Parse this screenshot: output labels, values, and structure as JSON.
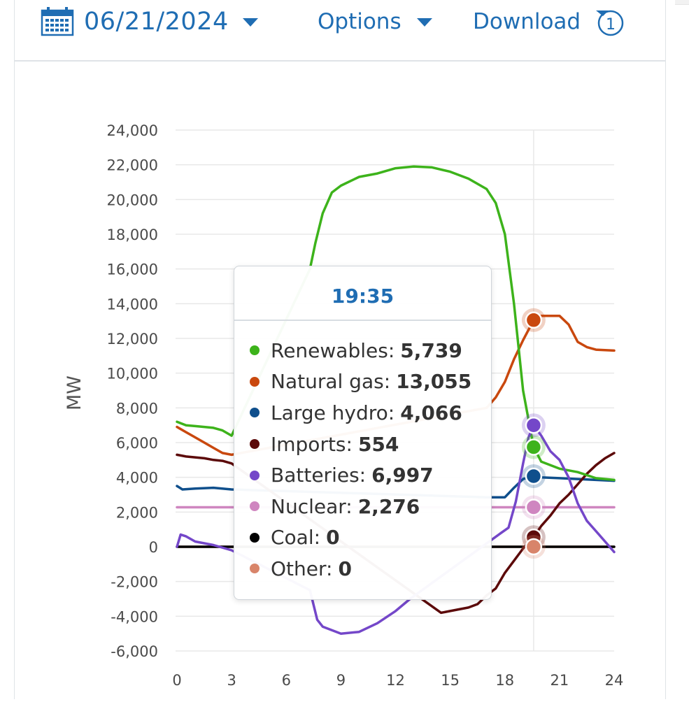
{
  "toolbar": {
    "date_label": "06/21/2024",
    "options_label": "Options",
    "download_label": "Download",
    "download_badge": "1",
    "accent_color": "#1f6db3"
  },
  "tooltip": {
    "time": "19:35",
    "rows": [
      {
        "label": "Renewables:",
        "value": "5,739",
        "color": "#3db31b"
      },
      {
        "label": "Natural gas:",
        "value": "13,055",
        "color": "#c9480e"
      },
      {
        "label": "Large hydro:",
        "value": "4,066",
        "color": "#0f4f8c"
      },
      {
        "label": "Imports:",
        "value": "554",
        "color": "#5c0a0a"
      },
      {
        "label": "Batteries:",
        "value": "6,997",
        "color": "#7447c9"
      },
      {
        "label": "Nuclear:",
        "value": "2,276",
        "color": "#cf86c0"
      },
      {
        "label": "Coal:",
        "value": "0",
        "color": "#000000"
      },
      {
        "label": "Other:",
        "value": "0",
        "color": "#d8846a"
      }
    ]
  },
  "chart_data": {
    "type": "line",
    "ylabel": "MW",
    "xlabel": "",
    "xlim": [
      0,
      24
    ],
    "ylim": [
      -6000,
      24000
    ],
    "yticks": [
      "24,000",
      "22,000",
      "20,000",
      "18,000",
      "16,000",
      "14,000",
      "12,000",
      "10,000",
      "8,000",
      "6,000",
      "4,000",
      "2,000",
      "0",
      "-2,000",
      "-4,000",
      "-6,000"
    ],
    "ytick_values": [
      24000,
      22000,
      20000,
      18000,
      16000,
      14000,
      12000,
      10000,
      8000,
      6000,
      4000,
      2000,
      0,
      -2000,
      -4000,
      -6000
    ],
    "xticks": [
      "0",
      "3",
      "6",
      "9",
      "12",
      "15",
      "18",
      "21",
      "24"
    ],
    "xtick_values": [
      0,
      3,
      6,
      9,
      12,
      15,
      18,
      21,
      24
    ],
    "grid": true,
    "cursor_x": 19.58,
    "series": [
      {
        "name": "Renewables",
        "color": "#3db31b",
        "x": [
          0,
          0.5,
          1,
          1.5,
          2,
          2.5,
          3,
          7.3,
          7.6,
          8,
          8.5,
          9,
          10,
          11,
          12,
          13,
          14,
          15,
          16,
          17,
          17.5,
          18,
          18.5,
          19,
          19.58,
          20,
          21,
          22,
          23,
          24
        ],
        "y": [
          7200,
          7000,
          6950,
          6900,
          6850,
          6700,
          6400,
          16000,
          17500,
          19200,
          20400,
          20800,
          21300,
          21500,
          21800,
          21900,
          21850,
          21600,
          21200,
          20600,
          19800,
          18000,
          14000,
          9000,
          5739,
          4900,
          4500,
          4300,
          3950,
          3850
        ]
      },
      {
        "name": "Natural gas",
        "color": "#c9480e",
        "x": [
          0,
          0.5,
          1,
          1.5,
          2,
          2.5,
          3,
          17,
          17.5,
          18,
          18.5,
          19,
          19.58,
          20,
          21,
          21.5,
          22,
          22.5,
          23,
          24
        ],
        "y": [
          6900,
          6600,
          6300,
          6000,
          5700,
          5400,
          5300,
          8000,
          8600,
          9500,
          10800,
          11900,
          13055,
          13300,
          13300,
          12800,
          11800,
          11500,
          11350,
          11300
        ]
      },
      {
        "name": "Large hydro",
        "color": "#0f4f8c",
        "x": [
          0,
          0.3,
          1,
          2,
          3,
          17,
          18,
          18.5,
          19,
          19.58,
          20,
          21,
          22,
          23,
          24
        ],
        "y": [
          3500,
          3300,
          3350,
          3400,
          3300,
          2850,
          2850,
          3400,
          3900,
          4066,
          4000,
          3950,
          3900,
          3850,
          3800
        ]
      },
      {
        "name": "Imports",
        "color": "#5c0a0a",
        "x": [
          0,
          0.5,
          1,
          1.5,
          2,
          2.5,
          3,
          14.5,
          15,
          15.5,
          16,
          16.5,
          17,
          17.5,
          18,
          18.5,
          19,
          19.58,
          20,
          20.5,
          21,
          21.5,
          22,
          22.5,
          23,
          23.5,
          24
        ],
        "y": [
          5300,
          5200,
          5150,
          5100,
          5000,
          4950,
          4800,
          -3800,
          -3700,
          -3600,
          -3500,
          -3300,
          -2800,
          -2400,
          -1500,
          -800,
          -100,
          554,
          1200,
          1800,
          2500,
          3000,
          3600,
          4200,
          4700,
          5100,
          5400
        ]
      },
      {
        "name": "Batteries",
        "color": "#7447c9",
        "x": [
          0,
          0.2,
          0.5,
          1,
          2,
          3,
          7.3,
          7.7,
          8,
          9,
          10,
          11,
          12,
          12.8,
          17.8,
          18.2,
          18.6,
          19,
          19.3,
          19.58,
          20,
          20.5,
          21,
          21.5,
          22,
          22.5,
          23,
          23.5,
          24
        ],
        "y": [
          0,
          700,
          600,
          300,
          100,
          -200,
          -2500,
          -4200,
          -4600,
          -5000,
          -4900,
          -4400,
          -3700,
          -3000,
          800,
          1100,
          2600,
          4800,
          6300,
          6997,
          6400,
          5500,
          5000,
          4000,
          2500,
          1500,
          900,
          300,
          -300
        ]
      },
      {
        "name": "Nuclear",
        "color": "#cf86c0",
        "x": [
          0,
          3,
          17.5,
          24
        ],
        "y": [
          2276,
          2276,
          2276,
          2276
        ]
      },
      {
        "name": "Coal",
        "color": "#000000",
        "x": [
          0,
          24
        ],
        "y": [
          0,
          0
        ]
      },
      {
        "name": "Other",
        "color": "#d8846a",
        "x": [
          0,
          3,
          17.5,
          24
        ],
        "y": [
          0,
          0,
          0,
          0
        ]
      }
    ],
    "hover_points": [
      {
        "name": "Natural gas",
        "x": 19.58,
        "y": 13055,
        "color": "#c9480e"
      },
      {
        "name": "Batteries",
        "x": 19.58,
        "y": 6997,
        "color": "#7447c9"
      },
      {
        "name": "Renewables",
        "x": 19.58,
        "y": 5739,
        "color": "#3db31b"
      },
      {
        "name": "Large hydro",
        "x": 19.58,
        "y": 4066,
        "color": "#0f4f8c"
      },
      {
        "name": "Nuclear",
        "x": 19.58,
        "y": 2276,
        "color": "#cf86c0"
      },
      {
        "name": "Imports",
        "x": 19.58,
        "y": 554,
        "color": "#5c0a0a"
      },
      {
        "name": "Other",
        "x": 19.58,
        "y": 0,
        "color": "#d8846a"
      }
    ]
  }
}
